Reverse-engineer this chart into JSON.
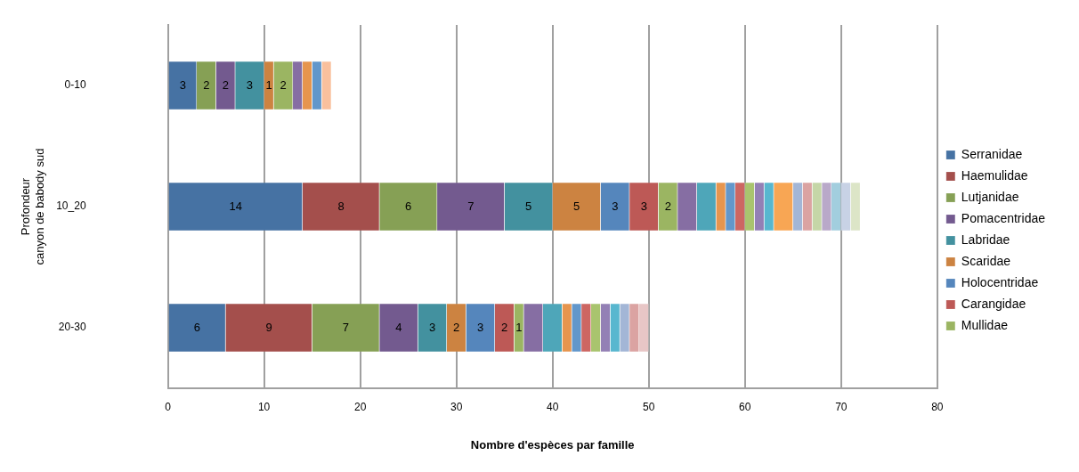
{
  "chart_data": {
    "type": "bar",
    "orientation": "horizontal",
    "stacked": true,
    "ylabel": "Profondeur\ncanyon de babody sud",
    "xlabel": "Nombre d'espèces par famille",
    "categories": [
      "0-10",
      "10_20",
      "20-30"
    ],
    "xlim": [
      0,
      80
    ],
    "xticks": [
      0,
      10,
      20,
      30,
      40,
      50,
      60,
      70,
      80
    ],
    "grid": "x",
    "legend": "right",
    "series": [
      {
        "name": "Serranidae",
        "color": "#4672a3",
        "values": [
          3,
          14,
          6
        ],
        "value_labels": [
          "3",
          "14",
          "6"
        ]
      },
      {
        "name": "Haemulidae",
        "color": "#a44f4c",
        "values": [
          0,
          8,
          9
        ],
        "value_labels": [
          null,
          "8",
          "9"
        ]
      },
      {
        "name": "Lutjanidae",
        "color": "#86a055",
        "values": [
          2,
          6,
          7
        ],
        "value_labels": [
          "2",
          "6",
          "7"
        ]
      },
      {
        "name": "Pomacentridae",
        "color": "#735a8f",
        "values": [
          2,
          7,
          4
        ],
        "value_labels": [
          "2",
          "7",
          "4"
        ]
      },
      {
        "name": "Labridae",
        "color": "#43919f",
        "values": [
          3,
          5,
          3
        ],
        "value_labels": [
          "3",
          "5",
          "3"
        ]
      },
      {
        "name": "Scaridae",
        "color": "#cc8341",
        "values": [
          1,
          5,
          2
        ],
        "value_labels": [
          "1",
          "5",
          "2"
        ]
      },
      {
        "name": "Holocentridae",
        "color": "#5586bc",
        "values": [
          0,
          3,
          3
        ],
        "value_labels": [
          null,
          "3",
          "3"
        ]
      },
      {
        "name": "Carangidae",
        "color": "#bd5956",
        "values": [
          0,
          3,
          2
        ],
        "value_labels": [
          null,
          "3",
          "2"
        ]
      },
      {
        "name": "Mullidae",
        "color": "#9bb562",
        "values": [
          2,
          2,
          1
        ],
        "value_labels": [
          "2",
          "2",
          "1"
        ]
      },
      {
        "color": "#866ea3",
        "values": [
          1,
          2,
          2
        ]
      },
      {
        "color": "#4ea6b9",
        "values": [
          0,
          2,
          2
        ]
      },
      {
        "color": "#e6954e",
        "values": [
          1,
          1,
          1
        ]
      },
      {
        "color": "#6297cb",
        "values": [
          1,
          1,
          1
        ]
      },
      {
        "color": "#cd6662",
        "values": [
          0,
          1,
          1
        ]
      },
      {
        "color": "#a9c46e",
        "values": [
          0,
          1,
          1
        ]
      },
      {
        "color": "#9380b5",
        "values": [
          0,
          1,
          1
        ]
      },
      {
        "color": "#58b7cf",
        "values": [
          0,
          1,
          1
        ]
      },
      {
        "color": "#f8a654",
        "values": [
          0,
          2,
          0
        ]
      },
      {
        "color": "#a3b6d6",
        "values": [
          0,
          1,
          1
        ]
      },
      {
        "color": "#dba3a2",
        "values": [
          0,
          1,
          1
        ]
      },
      {
        "color": "#c5d6a7",
        "values": [
          0,
          1,
          0
        ]
      },
      {
        "color": "#b9a9c9",
        "values": [
          0,
          1,
          0
        ]
      },
      {
        "color": "#a2cede",
        "values": [
          0,
          1,
          0
        ]
      },
      {
        "color": "#c8d2e5",
        "values": [
          0,
          1,
          0
        ]
      },
      {
        "color": "#dce5c7",
        "values": [
          0,
          1,
          0
        ]
      },
      {
        "color": "#f9c09d",
        "values": [
          1,
          0,
          0
        ]
      },
      {
        "color": "#e8c6c6",
        "values": [
          0,
          0,
          1
        ]
      }
    ]
  }
}
